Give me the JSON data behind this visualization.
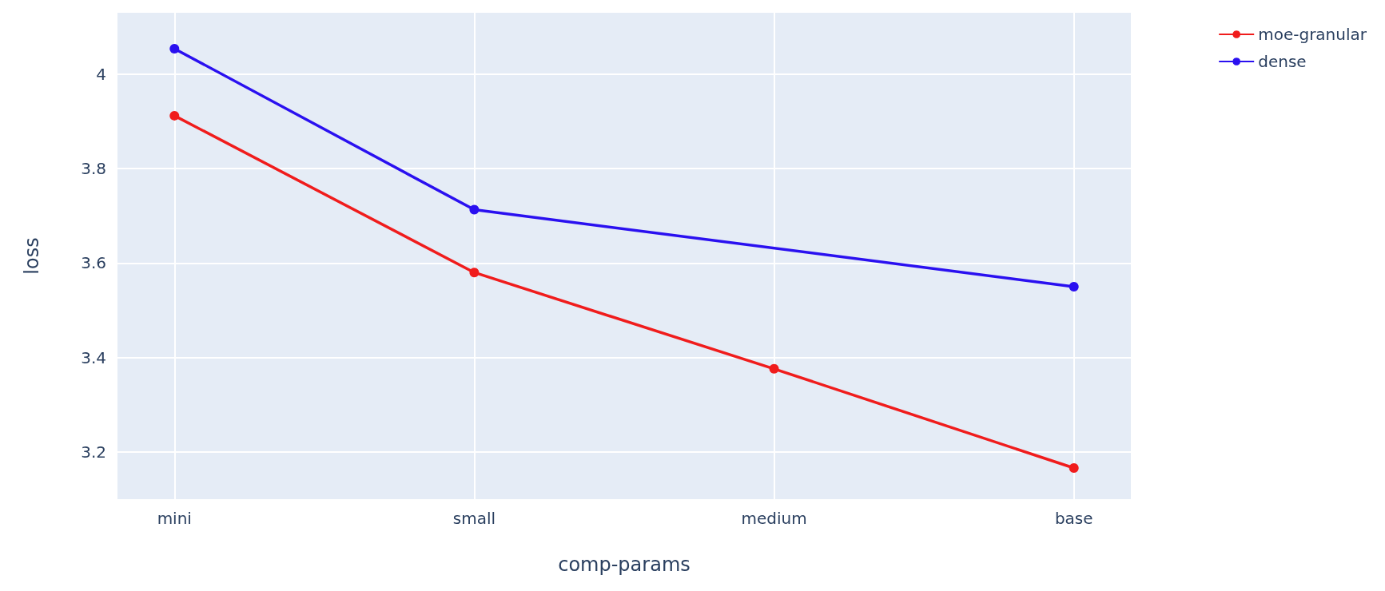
{
  "chart_data": {
    "type": "line",
    "xlabel": "comp-params",
    "ylabel": "loss",
    "categories": [
      "mini",
      "small",
      "medium",
      "base"
    ],
    "series": [
      {
        "name": "moe-granular",
        "color": "#f01c1c",
        "values": [
          3.912,
          3.58,
          3.376,
          3.166
        ]
      },
      {
        "name": "dense",
        "color": "#2a10f0",
        "values": [
          4.054,
          3.713,
          null,
          3.55
        ]
      }
    ],
    "ylim": [
      3.1,
      4.13
    ],
    "yticks": [
      3.2,
      3.4,
      3.6,
      3.8,
      4
    ],
    "grid": true,
    "legend": "top right",
    "marker": "circle",
    "line_style": "solid"
  }
}
